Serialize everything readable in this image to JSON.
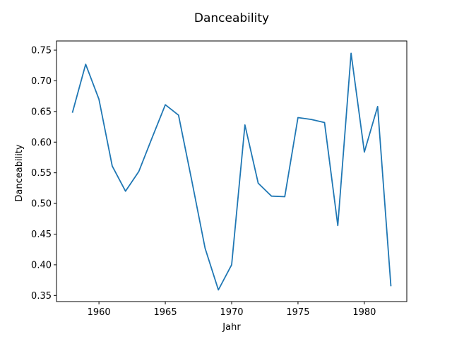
{
  "chart_data": {
    "type": "line",
    "title": "Danceability",
    "xlabel": "Jahr",
    "ylabel": "Danceability",
    "xlim": [
      1956.8,
      1983.2
    ],
    "ylim": [
      0.34,
      0.765
    ],
    "xticks": [
      1960,
      1965,
      1970,
      1975,
      1980
    ],
    "yticks": [
      0.35,
      0.4,
      0.45,
      0.5,
      0.55,
      0.6,
      0.65,
      0.7,
      0.75
    ],
    "grid": false,
    "line_color": "#1f77b4",
    "x": [
      1958,
      1959,
      1960,
      1961,
      1962,
      1963,
      1964,
      1965,
      1966,
      1967,
      1968,
      1969,
      1970,
      1971,
      1972,
      1973,
      1974,
      1975,
      1976,
      1977,
      1978,
      1979,
      1980,
      1981,
      1982
    ],
    "y": [
      0.648,
      0.727,
      0.67,
      0.561,
      0.52,
      0.552,
      0.607,
      0.661,
      0.644,
      0.537,
      0.427,
      0.359,
      0.4,
      0.628,
      0.533,
      0.512,
      0.511,
      0.64,
      0.637,
      0.632,
      0.464,
      0.745,
      0.584,
      0.658,
      0.365
    ]
  }
}
